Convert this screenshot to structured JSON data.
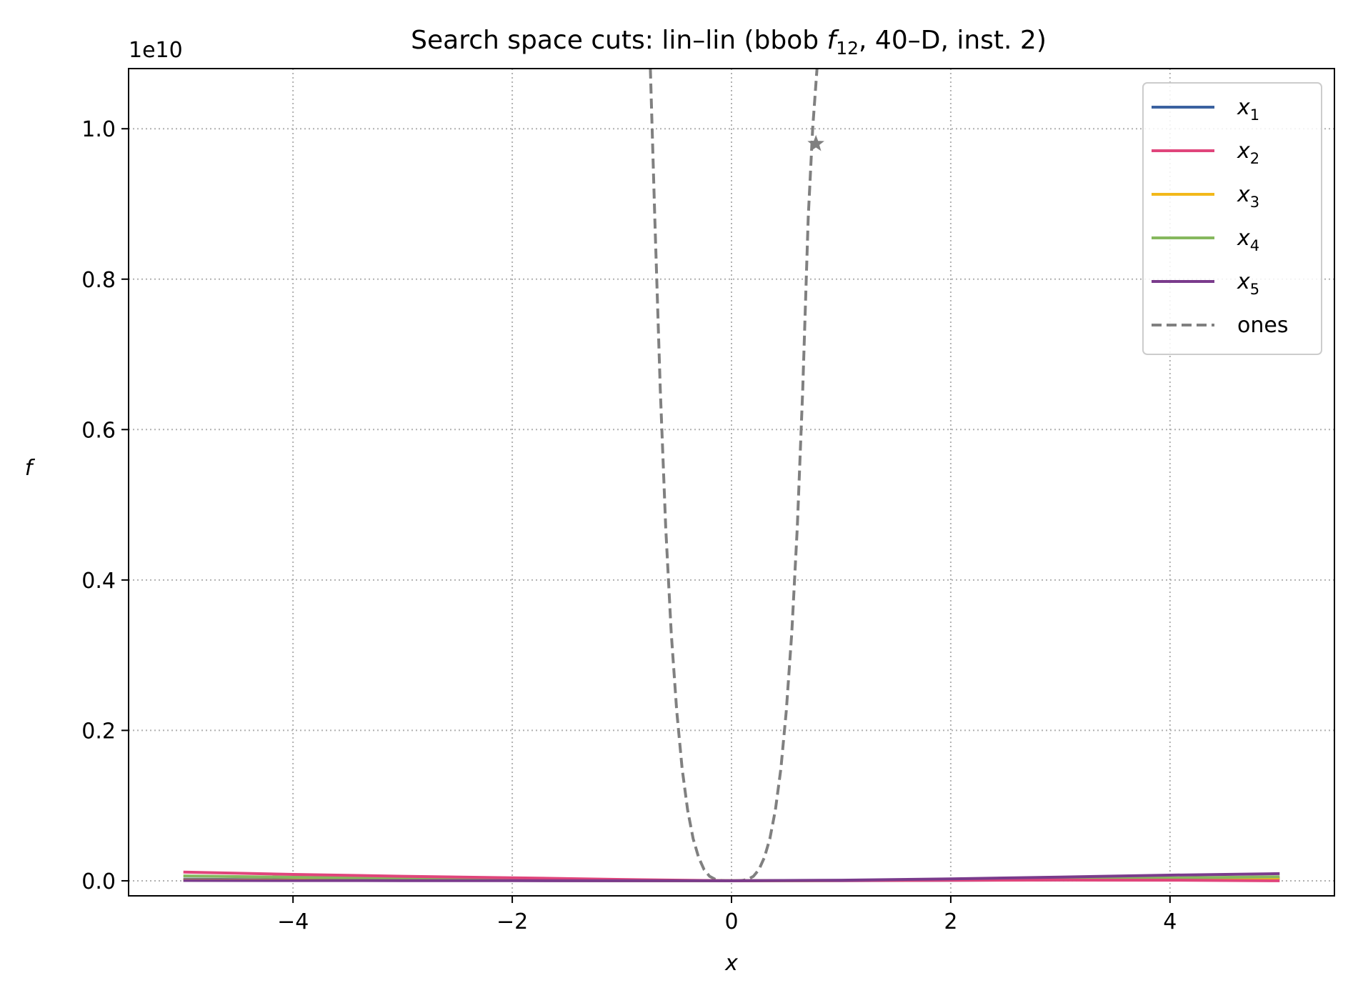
{
  "chart_data": {
    "type": "line",
    "title": {
      "pre": "Search space cuts: lin–lin (bbob ",
      "fname": "f",
      "fsub": "12",
      "post": ", 40–D, inst. 2)"
    },
    "xlabel": "x",
    "ylabel": "f",
    "offset_label": "1e10",
    "y_scale_factor": 10000000000,
    "xlim": [
      -5.5,
      5.5
    ],
    "ylim": [
      -0.02,
      1.08
    ],
    "xticks": [
      -4,
      -2,
      0,
      2,
      4
    ],
    "xtick_labels": [
      "−4",
      "−2",
      "0",
      "2",
      "4"
    ],
    "yticks": [
      0.0,
      0.2,
      0.4,
      0.6,
      0.8,
      1.0
    ],
    "ytick_labels": [
      "0.0",
      "0.2",
      "0.4",
      "0.6",
      "0.8",
      "1.0"
    ],
    "grid": true,
    "legend_position": "top-right",
    "series": [
      {
        "name": "x",
        "sub": "1",
        "color": "#3b62a0",
        "style": "solid",
        "x": [
          -5,
          -4,
          -3,
          -2,
          -1,
          0,
          1,
          2,
          3,
          4,
          5
        ],
        "y": [
          0.002,
          0.0014,
          0.0009,
          0.0005,
          0.0002,
          0.0,
          0.0002,
          0.0006,
          0.0012,
          0.0022,
          0.0034
        ]
      },
      {
        "name": "x",
        "sub": "2",
        "color": "#e0457b",
        "style": "solid",
        "x": [
          -5,
          -4,
          -3,
          -2,
          -1,
          0,
          1,
          2,
          3,
          4,
          5
        ],
        "y": [
          0.0115,
          0.0085,
          0.006,
          0.004,
          0.0018,
          0.0,
          0.0003,
          0.0006,
          0.001,
          0.0008,
          0.0
        ]
      },
      {
        "name": "x",
        "sub": "3",
        "color": "#f2b81a",
        "style": "solid",
        "x": [
          -5,
          -4,
          -3,
          -2,
          -1,
          0,
          1,
          2,
          3,
          4,
          5
        ],
        "y": [
          0.0012,
          0.0009,
          0.0006,
          0.0004,
          0.0002,
          0.0,
          0.0004,
          0.001,
          0.0017,
          0.0026,
          0.0036
        ]
      },
      {
        "name": "x",
        "sub": "4",
        "color": "#86b85e",
        "style": "solid",
        "x": [
          -5,
          -4,
          -3,
          -2,
          -1,
          0,
          1,
          2,
          3,
          4,
          5
        ],
        "y": [
          0.0065,
          0.0048,
          0.0033,
          0.002,
          0.0009,
          0.0,
          0.0004,
          0.0012,
          0.0024,
          0.0038,
          0.0055
        ]
      },
      {
        "name": "x",
        "sub": "5",
        "color": "#7a3b8c",
        "style": "solid",
        "x": [
          -5,
          -4,
          -3,
          -2,
          -1,
          0,
          1,
          2,
          3,
          4,
          5
        ],
        "y": [
          0.0004,
          0.0003,
          0.0002,
          0.0001,
          5e-05,
          0.0,
          0.0008,
          0.0025,
          0.005,
          0.0075,
          0.0095
        ]
      },
      {
        "name": "ones",
        "sub": "",
        "color": "#808080",
        "style": "dashed",
        "x": [
          -0.74,
          -0.7,
          -0.65,
          -0.6,
          -0.55,
          -0.5,
          -0.45,
          -0.4,
          -0.35,
          -0.3,
          -0.25,
          -0.2,
          -0.15,
          -0.1,
          -0.05,
          0.0,
          0.05,
          0.1,
          0.15,
          0.2,
          0.25,
          0.3,
          0.35,
          0.4,
          0.45,
          0.5,
          0.55,
          0.6,
          0.65,
          0.7,
          0.74,
          0.78
        ],
        "y": [
          1.08,
          0.882,
          0.653,
          0.47,
          0.33,
          0.226,
          0.149,
          0.094,
          0.056,
          0.031,
          0.015,
          0.006,
          0.002,
          0.0005,
          3e-05,
          0.0,
          3e-05,
          0.0005,
          0.002,
          0.006,
          0.015,
          0.031,
          0.056,
          0.094,
          0.149,
          0.226,
          0.33,
          0.47,
          0.653,
          0.882,
          1.0,
          1.08
        ]
      }
    ],
    "marker": {
      "x": 0.77,
      "y": 0.98,
      "symbol": "star",
      "color": "#808080"
    }
  }
}
